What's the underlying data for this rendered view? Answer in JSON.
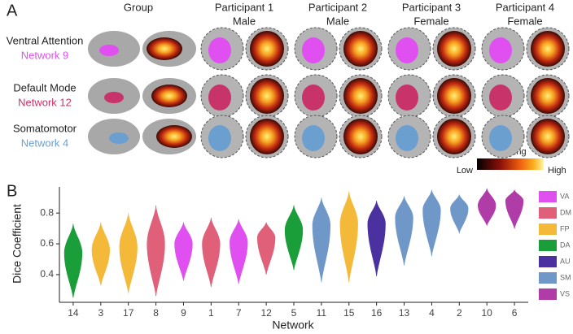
{
  "panel_a": {
    "label": "A",
    "columns": [
      {
        "title": "Group"
      },
      {
        "title": "Participant 1",
        "subtitle": "Male"
      },
      {
        "title": "Participant 2",
        "subtitle": "Male"
      },
      {
        "title": "Participant 3",
        "subtitle": "Female"
      },
      {
        "title": "Participant 4",
        "subtitle": "Female"
      }
    ],
    "rows": [
      {
        "name": "Ventral Attention",
        "network": "Network 9",
        "color": "#e04ff0"
      },
      {
        "name": "Default Mode",
        "network": "Network 12",
        "color": "#c8336a"
      },
      {
        "name": "Somatomotor",
        "network": "Network 4",
        "color": "#6a9fd0"
      }
    ],
    "colorbar": {
      "title": "Loading",
      "low": "Low",
      "high": "High"
    }
  },
  "chart_data": {
    "type": "violin",
    "panel_label": "B",
    "x_label": "Network",
    "y_label": "Dice Coefficient",
    "categories": [
      "14",
      "3",
      "17",
      "8",
      "9",
      "1",
      "7",
      "12",
      "5",
      "11",
      "15",
      "16",
      "13",
      "4",
      "2",
      "10",
      "6"
    ],
    "values": [
      0.54,
      0.56,
      0.58,
      0.6,
      0.6,
      0.6,
      0.61,
      0.64,
      0.69,
      0.72,
      0.73,
      0.73,
      0.77,
      0.82,
      0.83,
      0.85,
      0.88
    ],
    "low": [
      0.25,
      0.33,
      0.28,
      0.26,
      0.36,
      0.32,
      0.34,
      0.4,
      0.43,
      0.35,
      0.35,
      0.39,
      0.46,
      0.52,
      0.67,
      0.72,
      0.7
    ],
    "high": [
      0.73,
      0.74,
      0.8,
      0.85,
      0.74,
      0.77,
      0.76,
      0.74,
      0.85,
      0.9,
      0.94,
      0.88,
      0.91,
      0.95,
      0.92,
      0.96,
      0.95
    ],
    "colors": [
      "#1a9e3a",
      "#f5b93a",
      "#f5b93a",
      "#e0607a",
      "#e04ff0",
      "#e0607a",
      "#e04ff0",
      "#e0607a",
      "#1a9e3a",
      "#6f98c8",
      "#f5b93a",
      "#4b30a0",
      "#6f98c8",
      "#6f98c8",
      "#6f98c8",
      "#b03ca8",
      "#b03ca8"
    ],
    "ylim": [
      0.22,
      0.97
    ],
    "yticks": [
      0.4,
      0.6,
      0.8
    ],
    "legend": [
      {
        "name": "VA",
        "color": "#e04ff0"
      },
      {
        "name": "DM",
        "color": "#e0607a"
      },
      {
        "name": "FP",
        "color": "#f5b93a"
      },
      {
        "name": "DA",
        "color": "#1a9e3a"
      },
      {
        "name": "AU",
        "color": "#4b30a0"
      },
      {
        "name": "SM",
        "color": "#6f98c8"
      },
      {
        "name": "VS",
        "color": "#b03ca8"
      }
    ]
  }
}
